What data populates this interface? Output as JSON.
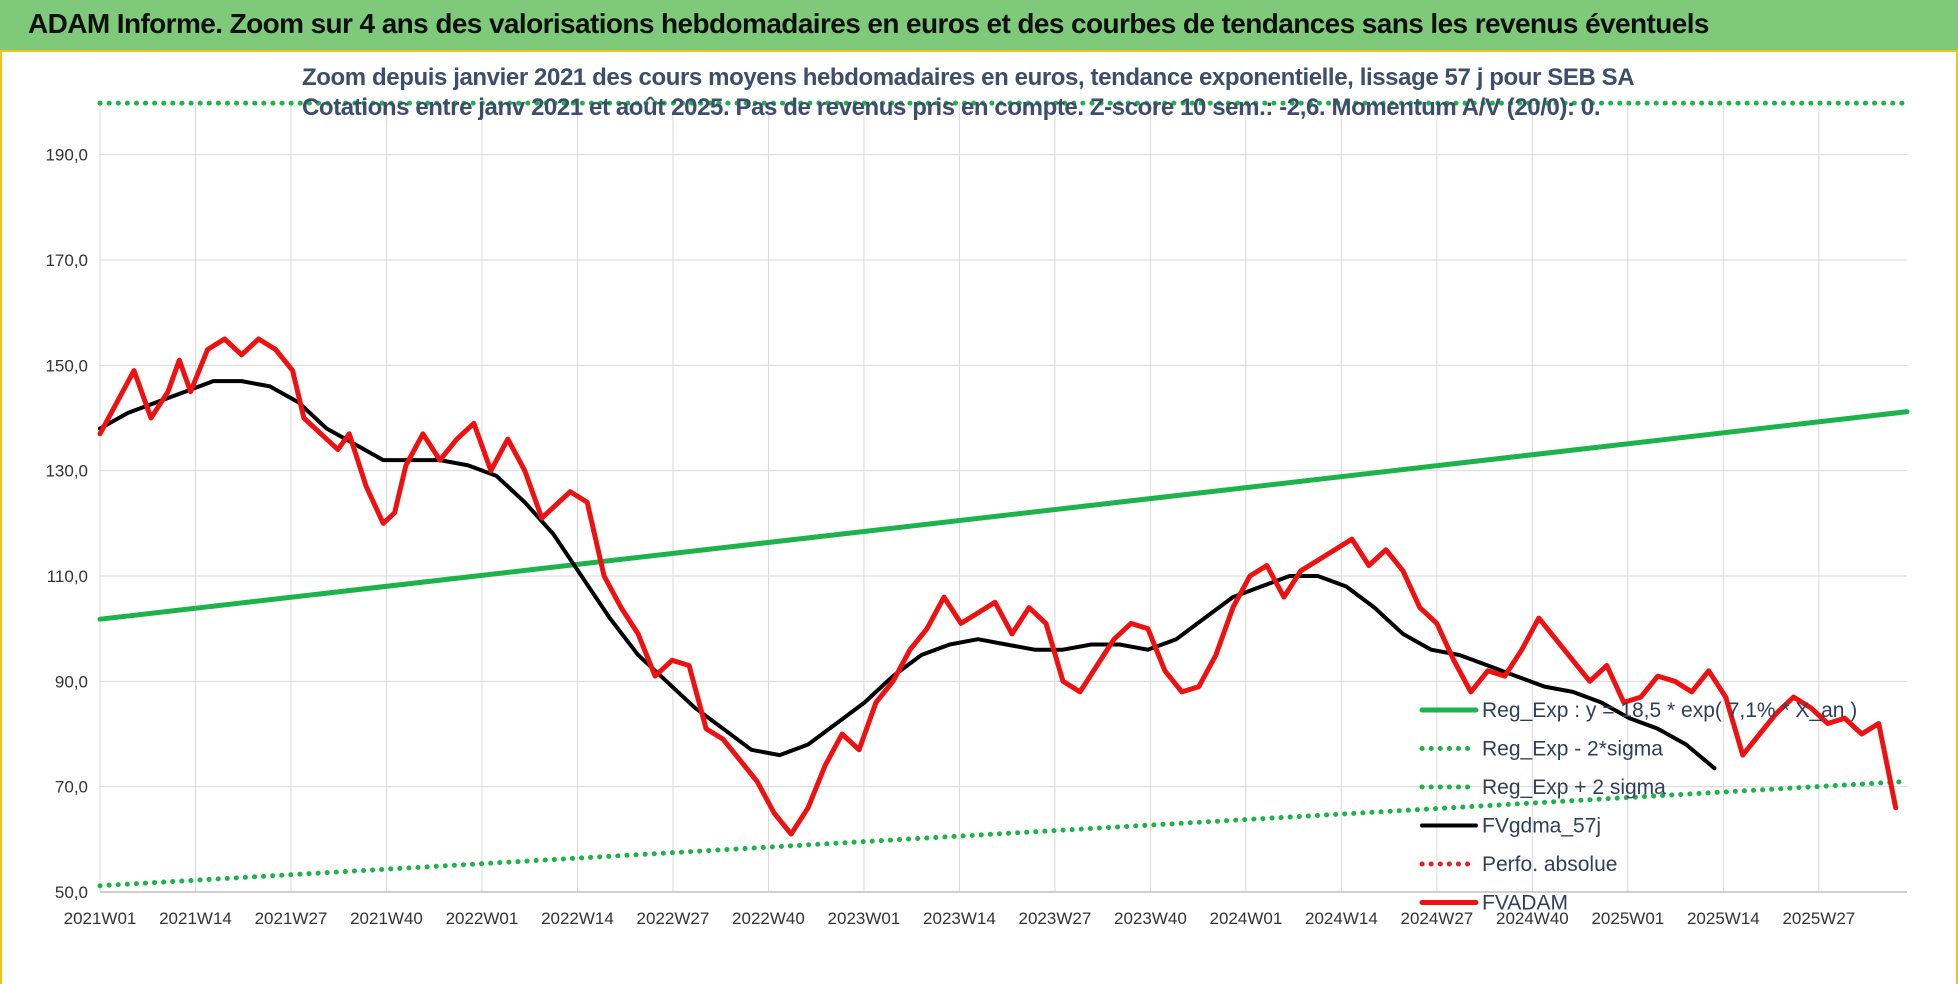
{
  "header": {
    "banner_title": "ADAM Informe. Zoom sur 4 ans des valorisations hebdomadaires en euros et des courbes de tendances sans les revenus éventuels"
  },
  "chart_data": {
    "type": "line",
    "title_lines": [
      "Zoom depuis janvier 2021 des cours moyens hebdomadaires en euros, tendance exponentielle, lissage 57 j pour SEB SA",
      "Cotations entre janv 2021 et août 2025.  Pas de revenus pris en compte. Z-score 10 sem.: -2,6. Momentum A/V (20/0): 0."
    ],
    "xlabel": "",
    "ylabel": "",
    "ylim": [
      50,
      200
    ],
    "y_ticks": [
      "50,0",
      "70,0",
      "90,0",
      "110,0",
      "130,0",
      "150,0",
      "170,0",
      "190,0"
    ],
    "y_tick_values": [
      50,
      70,
      90,
      110,
      130,
      150,
      170,
      190
    ],
    "x_ticks": [
      "2021W01",
      "2021W14",
      "2021W27",
      "2021W40",
      "2022W01",
      "2022W14",
      "2022W27",
      "2022W40",
      "2023W01",
      "2023W14",
      "2023W27",
      "2023W40",
      "2024W01",
      "2024W14",
      "2024W27",
      "2024W40",
      "2025W01",
      "2025W14",
      "2025W27"
    ],
    "grid": true,
    "legend_position": "bottom-right",
    "series": [
      {
        "name": "Reg_Exp : y = 18,5 * exp( 7,1% *  X_an )",
        "color": "#1db34b",
        "style": "solid",
        "points": [
          [
            0,
            101.8
          ],
          [
            240,
            141.2
          ]
        ]
      },
      {
        "name": "Reg_Exp - 2*sigma",
        "color": "#1db34b",
        "style": "dotted",
        "points": [
          [
            0,
            51.2
          ],
          [
            240,
            71.0
          ]
        ]
      },
      {
        "name": "Reg_Exp + 2 sigma",
        "color": "#1db34b",
        "style": "dotted",
        "points": [
          [
            0,
            199.8
          ],
          [
            240,
            199.8
          ]
        ]
      },
      {
        "name": "FVgdma_57j",
        "color": "#000000",
        "style": "solid",
        "points": [
          [
            0,
            138
          ],
          [
            5,
            141
          ],
          [
            10,
            143
          ],
          [
            15,
            145
          ],
          [
            20,
            147
          ],
          [
            25,
            147
          ],
          [
            30,
            146
          ],
          [
            35,
            143
          ],
          [
            40,
            138
          ],
          [
            45,
            135
          ],
          [
            50,
            132
          ],
          [
            55,
            132
          ],
          [
            60,
            132
          ],
          [
            65,
            131
          ],
          [
            70,
            129
          ],
          [
            75,
            124
          ],
          [
            80,
            118
          ],
          [
            85,
            110
          ],
          [
            90,
            102
          ],
          [
            95,
            95
          ],
          [
            100,
            90
          ],
          [
            105,
            85
          ],
          [
            110,
            81
          ],
          [
            115,
            77
          ],
          [
            120,
            76
          ],
          [
            125,
            78
          ],
          [
            130,
            82
          ],
          [
            135,
            86
          ],
          [
            140,
            91
          ],
          [
            145,
            95
          ],
          [
            150,
            97
          ],
          [
            155,
            98
          ],
          [
            160,
            97
          ],
          [
            165,
            96
          ],
          [
            170,
            96
          ],
          [
            175,
            97
          ],
          [
            180,
            97
          ],
          [
            185,
            96
          ],
          [
            190,
            98
          ],
          [
            195,
            102
          ],
          [
            200,
            106
          ],
          [
            205,
            108
          ],
          [
            210,
            110
          ],
          [
            215,
            110
          ],
          [
            220,
            108
          ],
          [
            225,
            104
          ],
          [
            230,
            99
          ],
          [
            235,
            96
          ],
          [
            240,
            95
          ],
          [
            245,
            93
          ],
          [
            250,
            91
          ],
          [
            255,
            89
          ],
          [
            260,
            88
          ],
          [
            265,
            86
          ],
          [
            270,
            83
          ],
          [
            275,
            81
          ],
          [
            280,
            78
          ],
          [
            285,
            73.5
          ]
        ]
      },
      {
        "name": "Perfo. absolue",
        "color": "#e02020",
        "style": "dotted",
        "points": []
      },
      {
        "name": "FVADAM",
        "color": "#ee1111",
        "style": "solid",
        "points": [
          [
            0,
            137
          ],
          [
            3,
            143
          ],
          [
            6,
            149
          ],
          [
            9,
            140
          ],
          [
            12,
            145
          ],
          [
            14,
            151
          ],
          [
            16,
            145
          ],
          [
            19,
            153
          ],
          [
            22,
            155
          ],
          [
            25,
            152
          ],
          [
            28,
            155
          ],
          [
            31,
            153
          ],
          [
            34,
            149
          ],
          [
            36,
            140
          ],
          [
            39,
            137
          ],
          [
            42,
            134
          ],
          [
            44,
            137
          ],
          [
            47,
            127
          ],
          [
            50,
            120
          ],
          [
            52,
            122
          ],
          [
            54,
            131
          ],
          [
            57,
            137
          ],
          [
            60,
            132
          ],
          [
            63,
            136
          ],
          [
            66,
            139
          ],
          [
            69,
            130
          ],
          [
            72,
            136
          ],
          [
            75,
            130
          ],
          [
            78,
            121
          ],
          [
            80,
            123
          ],
          [
            83,
            126
          ],
          [
            86,
            124
          ],
          [
            89,
            110
          ],
          [
            92,
            104
          ],
          [
            95,
            99
          ],
          [
            98,
            91
          ],
          [
            101,
            94
          ],
          [
            104,
            93
          ],
          [
            107,
            81
          ],
          [
            110,
            79
          ],
          [
            113,
            75
          ],
          [
            116,
            71
          ],
          [
            119,
            65
          ],
          [
            122,
            61
          ],
          [
            125,
            66
          ],
          [
            128,
            74
          ],
          [
            131,
            80
          ],
          [
            134,
            77
          ],
          [
            137,
            86
          ],
          [
            140,
            90
          ],
          [
            143,
            96
          ],
          [
            146,
            100
          ],
          [
            149,
            106
          ],
          [
            152,
            101
          ],
          [
            155,
            103
          ],
          [
            158,
            105
          ],
          [
            161,
            99
          ],
          [
            164,
            104
          ],
          [
            167,
            101
          ],
          [
            170,
            90
          ],
          [
            173,
            88
          ],
          [
            176,
            93
          ],
          [
            179,
            98
          ],
          [
            182,
            101
          ],
          [
            185,
            100
          ],
          [
            188,
            92
          ],
          [
            191,
            88
          ],
          [
            194,
            89
          ],
          [
            197,
            95
          ],
          [
            200,
            104
          ],
          [
            203,
            110
          ],
          [
            206,
            112
          ],
          [
            209,
            106
          ],
          [
            212,
            111
          ],
          [
            215,
            113
          ],
          [
            218,
            115
          ],
          [
            221,
            117
          ],
          [
            224,
            112
          ],
          [
            227,
            115
          ],
          [
            230,
            111
          ],
          [
            233,
            104
          ],
          [
            236,
            101
          ],
          [
            239,
            94
          ],
          [
            242,
            88
          ],
          [
            245,
            92
          ],
          [
            248,
            91
          ],
          [
            251,
            96
          ],
          [
            254,
            102
          ],
          [
            257,
            98
          ],
          [
            260,
            94
          ],
          [
            263,
            90
          ],
          [
            266,
            93
          ],
          [
            269,
            86
          ],
          [
            272,
            87
          ],
          [
            275,
            91
          ],
          [
            278,
            90
          ],
          [
            281,
            88
          ],
          [
            284,
            92
          ],
          [
            287,
            87
          ],
          [
            290,
            76
          ],
          [
            293,
            80
          ],
          [
            296,
            84
          ],
          [
            299,
            87
          ],
          [
            302,
            85
          ],
          [
            305,
            82
          ],
          [
            308,
            83
          ],
          [
            311,
            80
          ],
          [
            314,
            82
          ],
          [
            317,
            66
          ]
        ]
      }
    ]
  }
}
